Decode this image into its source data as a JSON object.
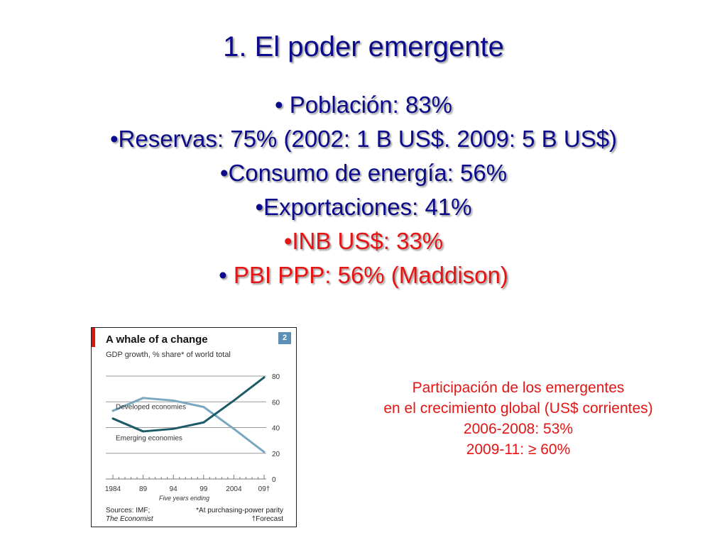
{
  "slide": {
    "title": "1. El poder emergente",
    "bullets": [
      {
        "text": "• Población: 83%",
        "color": "#0b0b8c"
      },
      {
        "text": "•Reservas: 75% (2002: 1 B US$. 2009: 5 B US$)",
        "color": "#0b0b8c"
      },
      {
        "text": "•Consumo de energía: 56%",
        "color": "#0b0b8c"
      },
      {
        "text": "•Exportaciones: 41%",
        "color": "#0b0b8c"
      },
      {
        "text": "•INB US$: 33%",
        "color": "#e41515"
      },
      {
        "bullet": "• ",
        "text": "PBI PPP: 56% (Maddison)",
        "color": "#e41515"
      }
    ],
    "caption": [
      "Participación de los emergentes",
      "en el crecimiento global (US$ corrientes)",
      "2006-2008: 53%",
      "2009-11: ≥ 60%"
    ]
  },
  "figure": {
    "badge": "2",
    "source_left": [
      "Sources: IMF;",
      "The Economist"
    ],
    "source_right": [
      "*At purchasing-power parity",
      "†Forecast"
    ]
  },
  "chart_data": {
    "type": "line",
    "title": "A whale of a change",
    "subtitle": "GDP growth, % share* of world total",
    "xlabel": "Five years ending",
    "ylabel": "",
    "x": [
      "1984",
      "89",
      "94",
      "99",
      "2004",
      "09†"
    ],
    "ylim": [
      0,
      80
    ],
    "yticks": [
      0,
      20,
      40,
      60,
      80
    ],
    "grid": true,
    "series": [
      {
        "name": "Developed economies",
        "values": [
          53,
          63,
          61,
          56,
          39,
          21
        ],
        "color": "#7aa7c0"
      },
      {
        "name": "Emerging economies",
        "values": [
          47,
          37,
          39,
          44,
          61,
          79
        ],
        "color": "#1c5a68"
      }
    ]
  }
}
